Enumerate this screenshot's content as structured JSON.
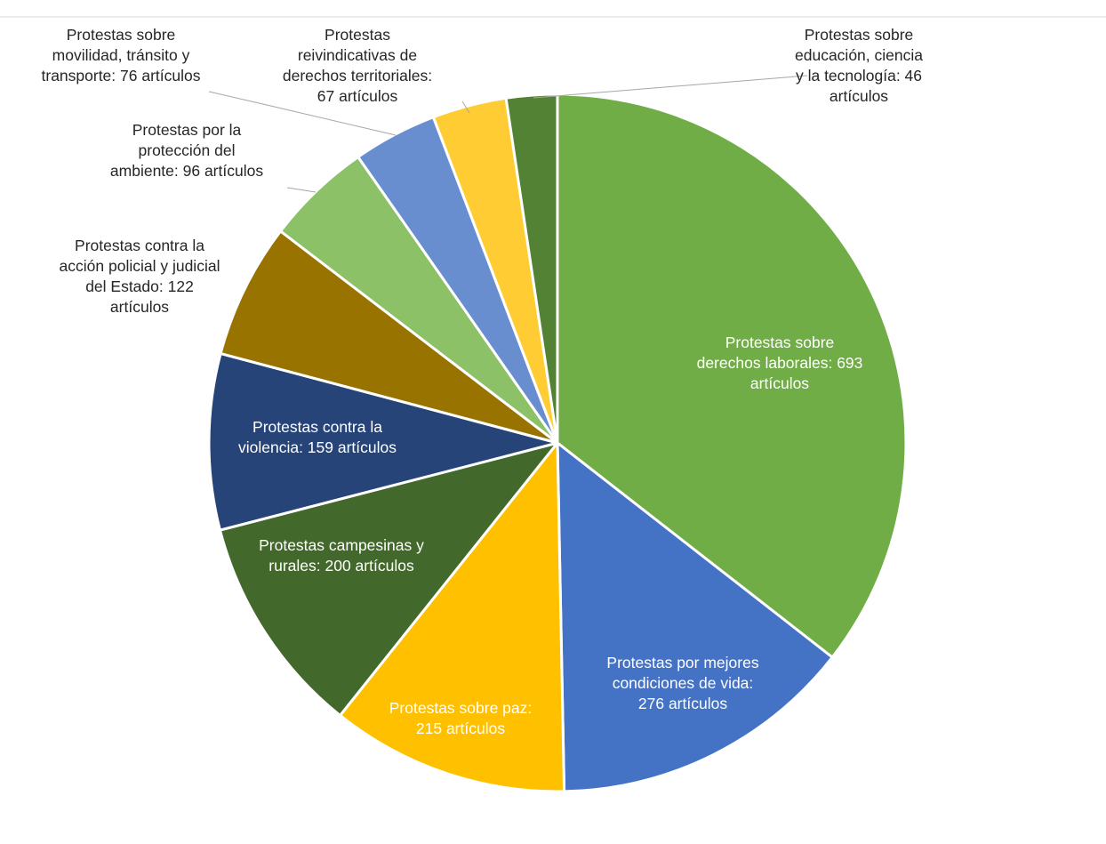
{
  "chart_data": {
    "type": "pie",
    "title": "",
    "legend": "none",
    "slices": [
      {
        "label_lines": [
          "Protestas sobre",
          "derechos laborales: 693",
          "artículos"
        ],
        "value": 693,
        "color": "#70AD47"
      },
      {
        "label_lines": [
          "Protestas por mejores",
          "condiciones de vida:",
          "276 artículos"
        ],
        "value": 276,
        "color": "#4472C4"
      },
      {
        "label_lines": [
          "Protestas sobre paz:",
          "215 artículos"
        ],
        "value": 215,
        "color": "#FFC000"
      },
      {
        "label_lines": [
          "Protestas campesinas y",
          "rurales: 200 artículos"
        ],
        "value": 200,
        "color": "#43682B"
      },
      {
        "label_lines": [
          "Protestas contra la",
          "violencia: 159 artículos"
        ],
        "value": 159,
        "color": "#264478"
      },
      {
        "label_lines": [
          "Protestas contra la",
          "acción policial y judicial",
          "del Estado: 122",
          "artículos"
        ],
        "value": 122,
        "color": "#997300"
      },
      {
        "label_lines": [
          "Protestas por la",
          "protección del",
          "ambiente: 96 artículos"
        ],
        "value": 96,
        "color": "#8CC168"
      },
      {
        "label_lines": [
          "Protestas sobre",
          "movilidad, tránsito y",
          "transporte: 76 artículos"
        ],
        "value": 76,
        "color": "#698ED0"
      },
      {
        "label_lines": [
          "Protestas",
          "reivindicativas de",
          "derechos territoriales:",
          "67 artículos"
        ],
        "value": 67,
        "color": "#FFCD33"
      },
      {
        "label_lines": [
          "Protestas sobre",
          "educación, ciencia",
          "y la tecnología: 46",
          "artículos"
        ],
        "value": 46,
        "color": "#548235"
      }
    ]
  }
}
